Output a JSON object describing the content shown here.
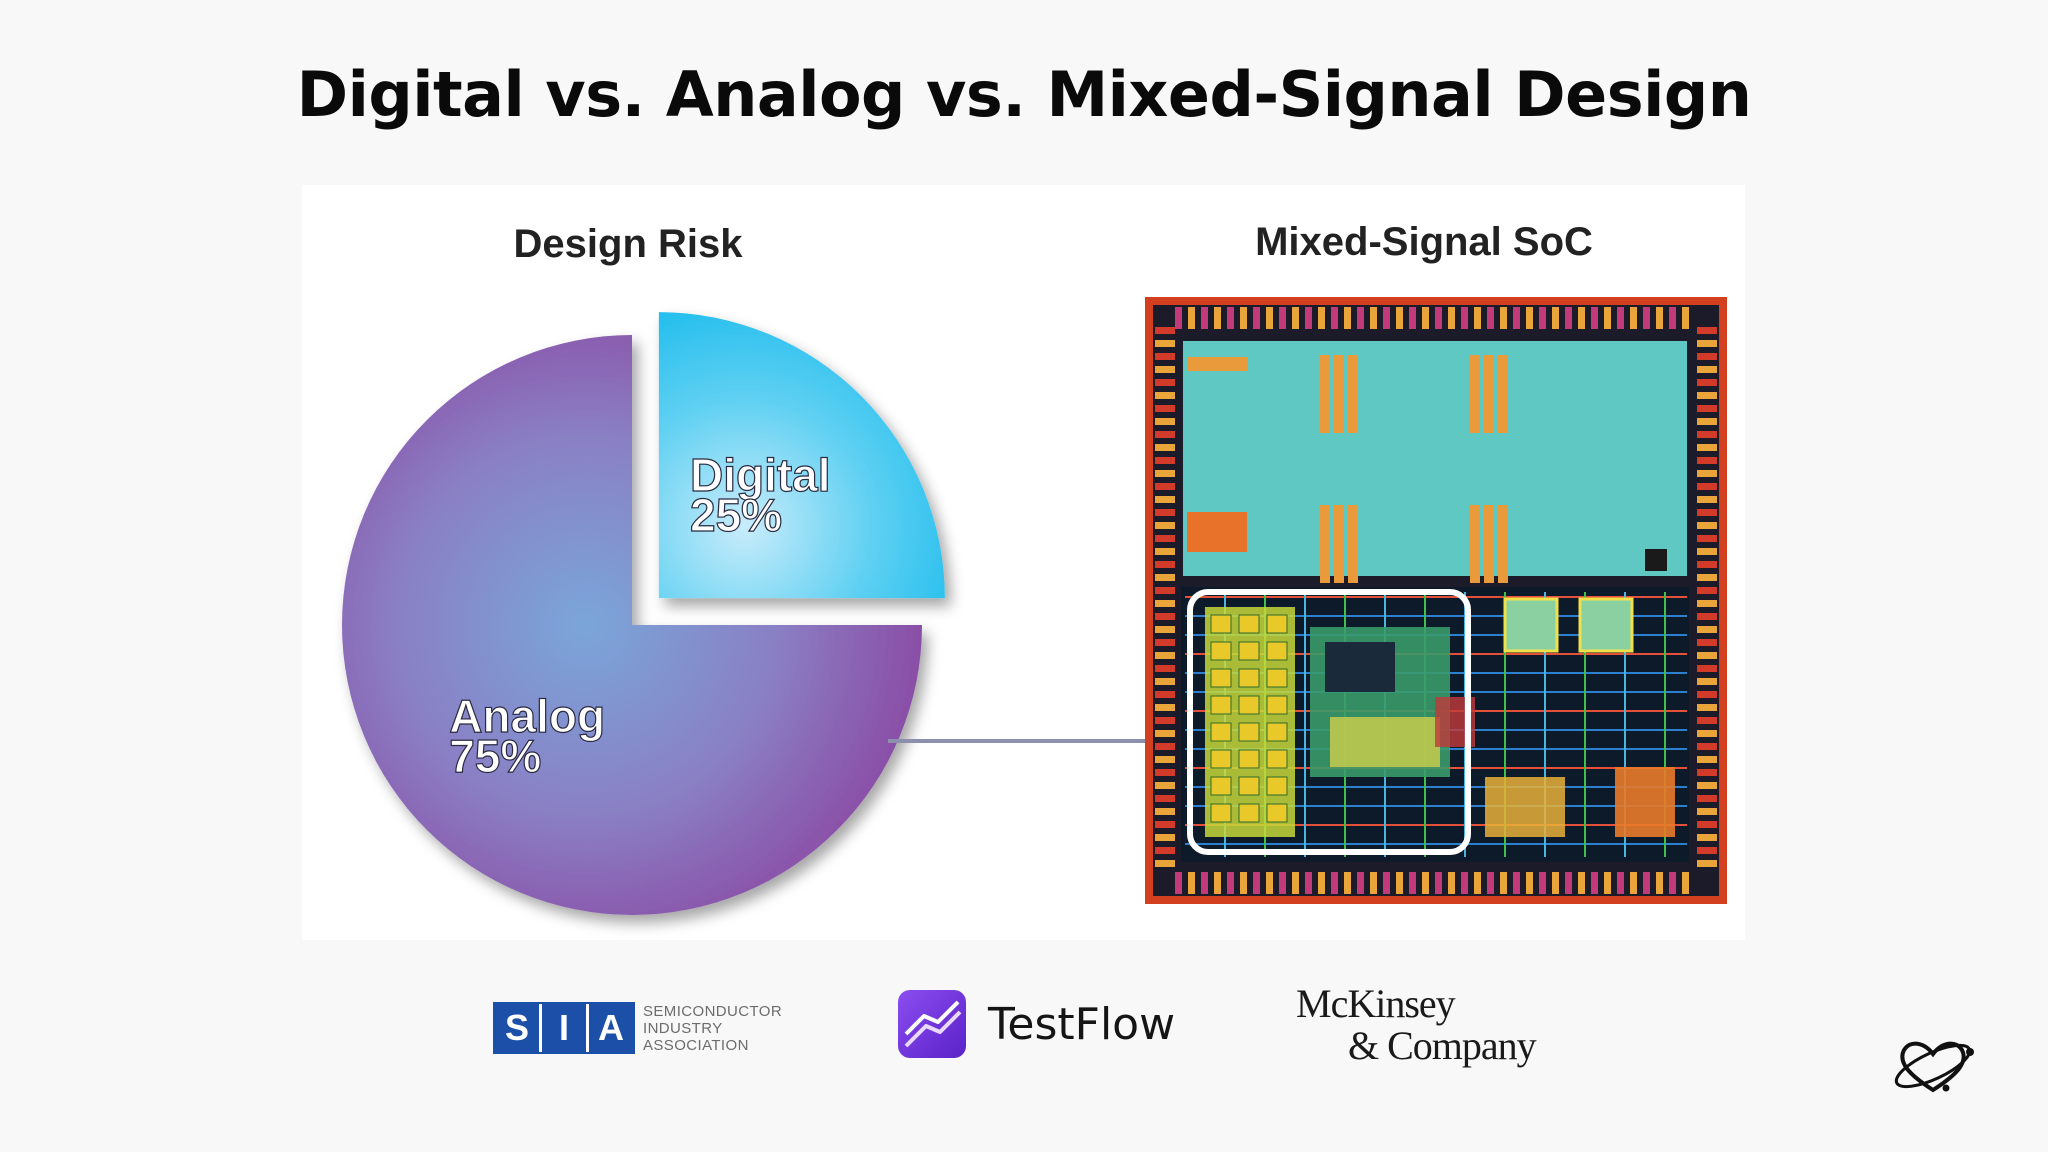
{
  "slide": {
    "title": "Digital vs. Analog vs. Mixed-Signal Design"
  },
  "chart_data": {
    "type": "pie",
    "title": "Design Risk",
    "slices": [
      {
        "label": "Digital",
        "value": 25,
        "value_label": "25%",
        "color": "#1ec3ee",
        "exploded": true
      },
      {
        "label": "Analog",
        "value": 75,
        "value_label": "75%",
        "color": "#8a55a8",
        "exploded": false
      }
    ]
  },
  "soc": {
    "title": "Mixed-Signal SoC"
  },
  "logos": {
    "sia": {
      "letters": [
        "S",
        "I",
        "A"
      ],
      "lines": [
        "SEMICONDUCTOR",
        "INDUSTRY",
        "ASSOCIATION"
      ]
    },
    "testflow": {
      "name": "TestFlow"
    },
    "mckinsey": {
      "line1": "McKinsey",
      "line2": "& Company"
    }
  },
  "colors": {
    "accent_purple": "#7b3fe4",
    "chip_core": "#5fc8c2",
    "chip_border": "#d2401f"
  },
  "icons": {
    "testflow": "testflow-logo-icon",
    "corner": "atom-heart-icon"
  }
}
